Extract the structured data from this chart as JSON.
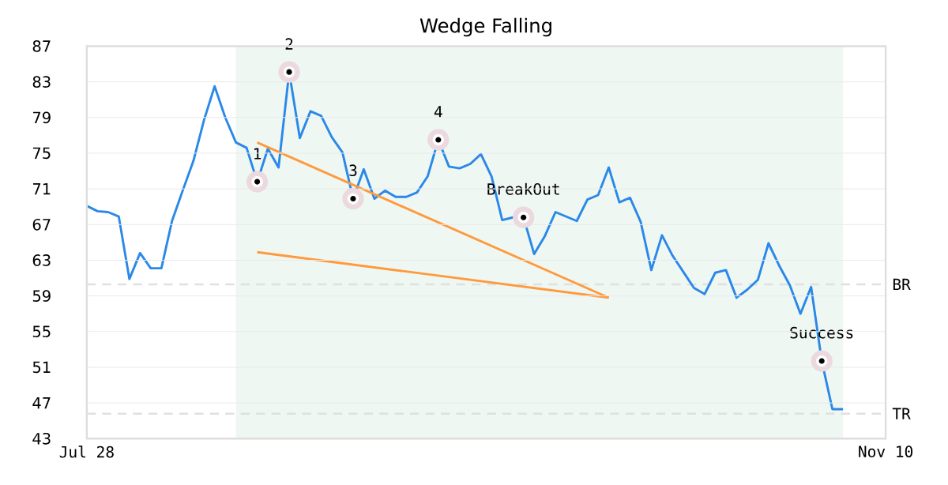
{
  "chart_data": {
    "type": "line",
    "title": "Wedge Falling",
    "categories": [
      "Jul 28",
      null,
      null,
      null,
      null,
      null,
      null,
      null,
      null,
      null,
      null,
      null,
      null,
      null,
      null,
      null,
      null,
      null,
      null,
      null,
      null,
      null,
      null,
      null,
      null,
      null,
      null,
      null,
      null,
      null,
      null,
      null,
      null,
      null,
      null,
      null,
      null,
      null,
      null,
      null,
      null,
      null,
      null,
      null,
      null,
      null,
      null,
      null,
      null,
      null,
      null,
      null,
      null,
      null,
      null,
      null,
      null,
      null,
      null,
      null,
      null,
      null,
      null,
      null,
      null,
      null,
      null,
      null,
      null,
      null,
      null,
      null,
      null,
      null,
      null,
      "Nov 10"
    ],
    "series": [
      {
        "color": "#2b88e8",
        "values": [
          69.1,
          68.5,
          68.4,
          67.9,
          60.9,
          63.8,
          62.1,
          62.1,
          67.4,
          70.8,
          74.1,
          78.7,
          82.5,
          79.0,
          76.2,
          75.6,
          71.8,
          75.5,
          73.4,
          84.1,
          76.7,
          79.7,
          79.2,
          76.8,
          75.1,
          69.9,
          73.2,
          69.9,
          70.8,
          70.1,
          70.1,
          70.6,
          72.4,
          76.5,
          73.5,
          73.3,
          73.8,
          74.9,
          72.4,
          67.5,
          67.8,
          67.8,
          63.7,
          65.7,
          68.4,
          67.9,
          67.4,
          69.8,
          70.3,
          73.4,
          69.5,
          70.0,
          67.3,
          61.9,
          65.8,
          63.5,
          61.7,
          59.9,
          59.2,
          61.6,
          61.9,
          58.8,
          59.7,
          60.8,
          64.9,
          62.4,
          60.2,
          57.0,
          60.0,
          51.7,
          46.3,
          46.3,
          null,
          null,
          null,
          null
        ]
      },
      {
        "type": "line",
        "color": "#ff9a3c",
        "values": [
          null,
          null,
          null,
          null,
          null,
          null,
          null,
          null,
          null,
          null,
          null,
          null,
          null,
          null,
          null,
          null,
          76.2,
          null,
          null,
          null,
          null,
          null,
          null,
          null,
          null,
          null,
          null,
          null,
          null,
          null,
          null,
          null,
          null,
          null,
          null,
          null,
          null,
          null,
          null,
          null,
          null,
          null,
          null,
          null,
          null,
          null,
          null,
          null,
          null,
          58.8,
          null,
          null,
          null,
          null,
          null,
          null,
          null,
          null,
          null,
          null,
          null,
          null,
          null,
          null,
          null,
          null,
          null,
          null,
          null,
          null,
          null,
          null,
          null,
          null,
          null,
          null
        ]
      },
      {
        "type": "line",
        "color": "#ff9a3c",
        "values": [
          null,
          null,
          null,
          null,
          null,
          null,
          null,
          null,
          null,
          null,
          null,
          null,
          null,
          null,
          null,
          null,
          63.9,
          null,
          null,
          null,
          null,
          null,
          null,
          null,
          null,
          null,
          null,
          null,
          null,
          null,
          null,
          null,
          null,
          null,
          null,
          null,
          null,
          null,
          null,
          null,
          null,
          null,
          null,
          null,
          null,
          null,
          null,
          null,
          null,
          58.8,
          null,
          null,
          null,
          null,
          null,
          null,
          null,
          null,
          null,
          null,
          null,
          null,
          null,
          null,
          null,
          null,
          null,
          null,
          null,
          null,
          null,
          null,
          null,
          null,
          null,
          null
        ]
      },
      {
        "type": "scatter",
        "color": "#ebd9df",
        "values": [
          null,
          null,
          null,
          null,
          null,
          null,
          null,
          null,
          null,
          null,
          null,
          null,
          null,
          null,
          null,
          null,
          71.8,
          null,
          null,
          84.1,
          null,
          null,
          null,
          null,
          null,
          69.9,
          null,
          null,
          null,
          null,
          null,
          null,
          null,
          76.5,
          null,
          null,
          null,
          null,
          null,
          null,
          null,
          67.8,
          null,
          null,
          null,
          null,
          null,
          null,
          null,
          null,
          null,
          null,
          null,
          null,
          null,
          null,
          null,
          null,
          null,
          null,
          null,
          null,
          null,
          null,
          null,
          null,
          null,
          null,
          null,
          51.7,
          null,
          null,
          null,
          null,
          null,
          null
        ]
      }
    ],
    "annotations": [
      "1",
      "2",
      "3",
      "4",
      "BreakOut",
      "Success"
    ],
    "ref_lines": [
      {
        "axis": "y",
        "value": 60.3,
        "label": "BR",
        "color": "#e0e0e0",
        "line_style": "dashed"
      },
      {
        "axis": "y",
        "value": 45.8,
        "label": "TR",
        "color": "#e0e0e0",
        "line_style": "dashed"
      }
    ],
    "ylim": [
      43,
      87
    ],
    "yticks": [
      43,
      47,
      51,
      55,
      59,
      63,
      67,
      71,
      75,
      79,
      83,
      87
    ],
    "grid": "y"
  }
}
